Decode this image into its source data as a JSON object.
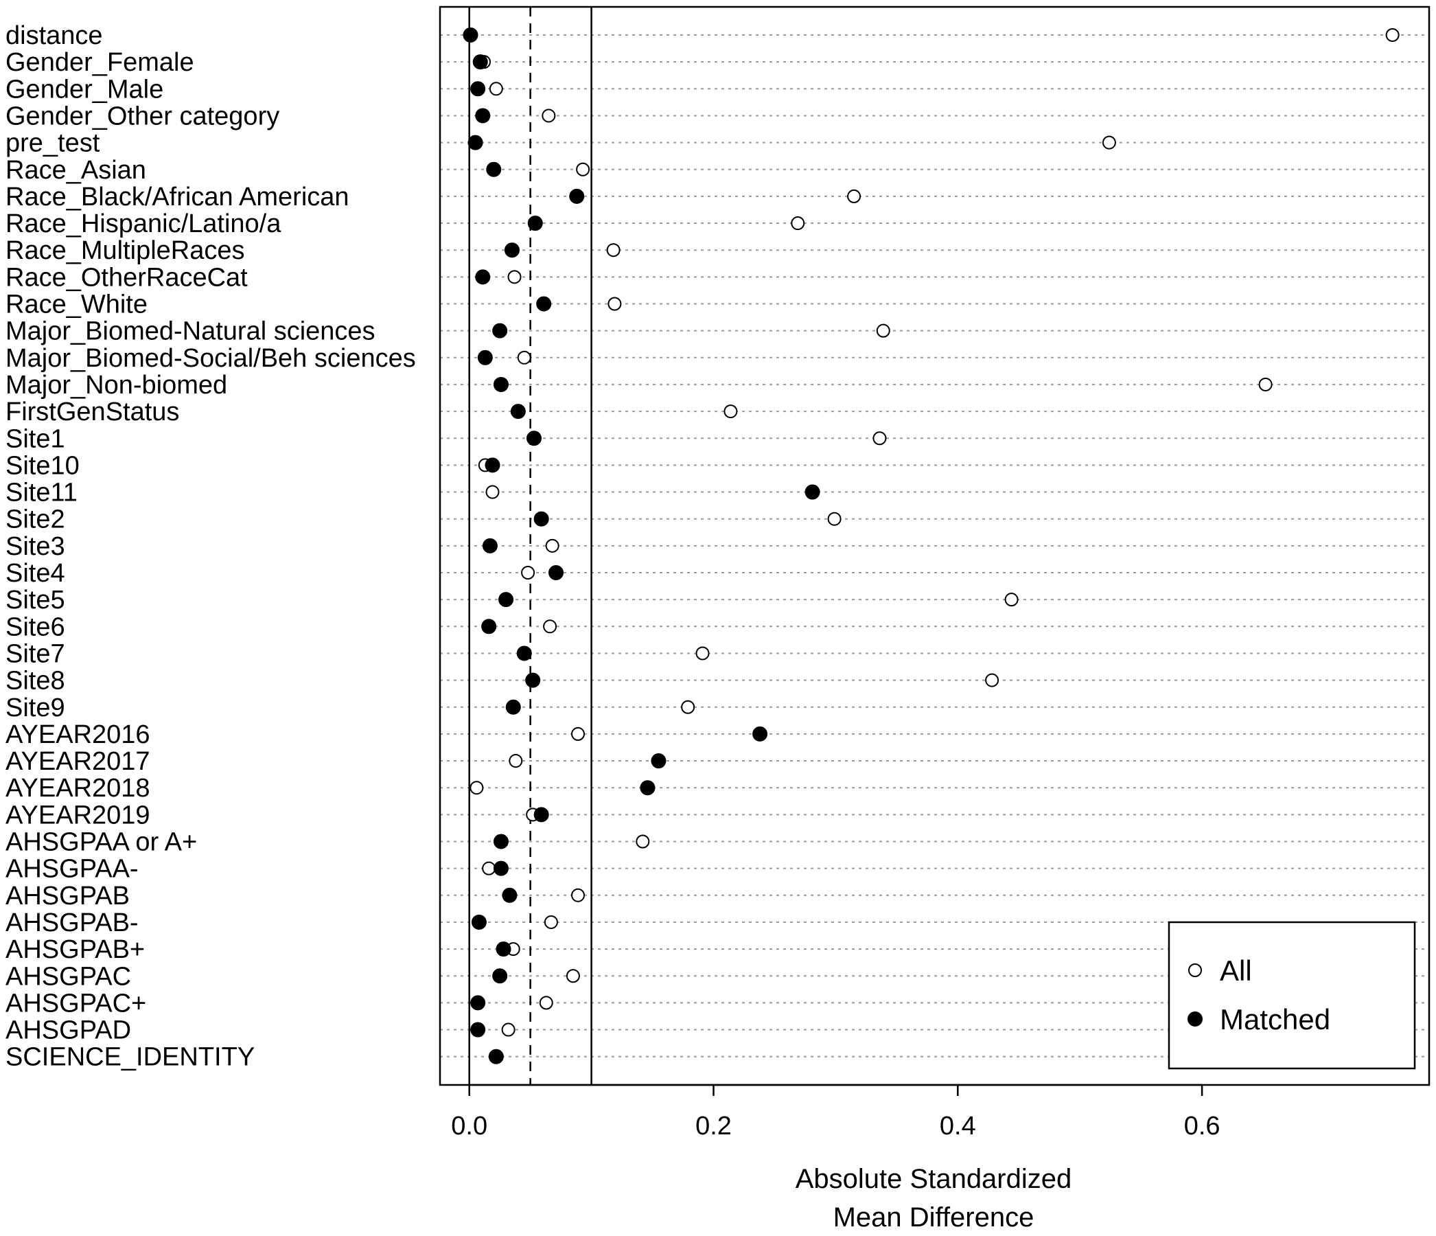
{
  "chart_data": {
    "type": "scatter",
    "title": "",
    "xlabel_lines": [
      "Absolute Standardized",
      "Mean Difference"
    ],
    "xlim": [
      -0.024,
      0.786
    ],
    "xticks": [
      "0.0",
      "0.2",
      "0.4",
      "0.6"
    ],
    "xtick_values": [
      0.0,
      0.2,
      0.4,
      0.6
    ],
    "reference_lines": [
      {
        "value": 0.0,
        "style": "solid"
      },
      {
        "value": 0.05,
        "style": "dashed"
      },
      {
        "value": 0.1,
        "style": "solid"
      }
    ],
    "categories": [
      "distance",
      "Gender_Female",
      "Gender_Male",
      "Gender_Other category",
      "pre_test",
      "Race_Asian",
      "Race_Black/African American",
      "Race_Hispanic/Latino/a",
      "Race_MultipleRaces",
      "Race_OtherRaceCat",
      "Race_White",
      "Major_Biomed-Natural sciences",
      "Major_Biomed-Social/Beh sciences",
      "Major_Non-biomed",
      "FirstGenStatus",
      "Site1",
      "Site10",
      "Site11",
      "Site2",
      "Site3",
      "Site4",
      "Site5",
      "Site6",
      "Site7",
      "Site8",
      "Site9",
      "AYEAR2016",
      "AYEAR2017",
      "AYEAR2018",
      "AYEAR2019",
      "AHSGPAA or A+",
      "AHSGPAA-",
      "AHSGPAB",
      "AHSGPAB-",
      "AHSGPAB+",
      "AHSGPAC",
      "AHSGPAC+",
      "AHSGPAD",
      "SCIENCE_IDENTITY"
    ],
    "series": [
      {
        "name": "All",
        "marker": "open-circle",
        "values": [
          0.756,
          0.012,
          0.022,
          0.065,
          0.524,
          0.093,
          0.315,
          0.269,
          0.118,
          0.037,
          0.119,
          0.339,
          0.045,
          0.652,
          0.214,
          0.336,
          0.013,
          0.019,
          0.299,
          0.068,
          0.048,
          0.444,
          0.066,
          0.191,
          0.428,
          0.179,
          0.089,
          0.038,
          0.006,
          0.052,
          0.142,
          0.016,
          0.089,
          0.067,
          0.036,
          0.085,
          0.063,
          0.032,
          null
        ]
      },
      {
        "name": "Matched",
        "marker": "filled-circle",
        "values": [
          0.001,
          0.009,
          0.007,
          0.011,
          0.005,
          0.02,
          0.088,
          0.054,
          0.035,
          0.011,
          0.061,
          0.025,
          0.013,
          0.026,
          0.04,
          0.053,
          0.019,
          0.281,
          0.059,
          0.017,
          0.071,
          0.03,
          0.016,
          0.045,
          0.052,
          0.036,
          0.238,
          0.155,
          0.146,
          0.059,
          0.026,
          0.026,
          0.033,
          0.008,
          0.028,
          0.025,
          0.007,
          0.007,
          0.022
        ]
      }
    ],
    "legend": {
      "position": "bottom-right",
      "entries": [
        {
          "label": "All",
          "marker": "open-circle"
        },
        {
          "label": "Matched",
          "marker": "filled-circle"
        }
      ]
    }
  }
}
